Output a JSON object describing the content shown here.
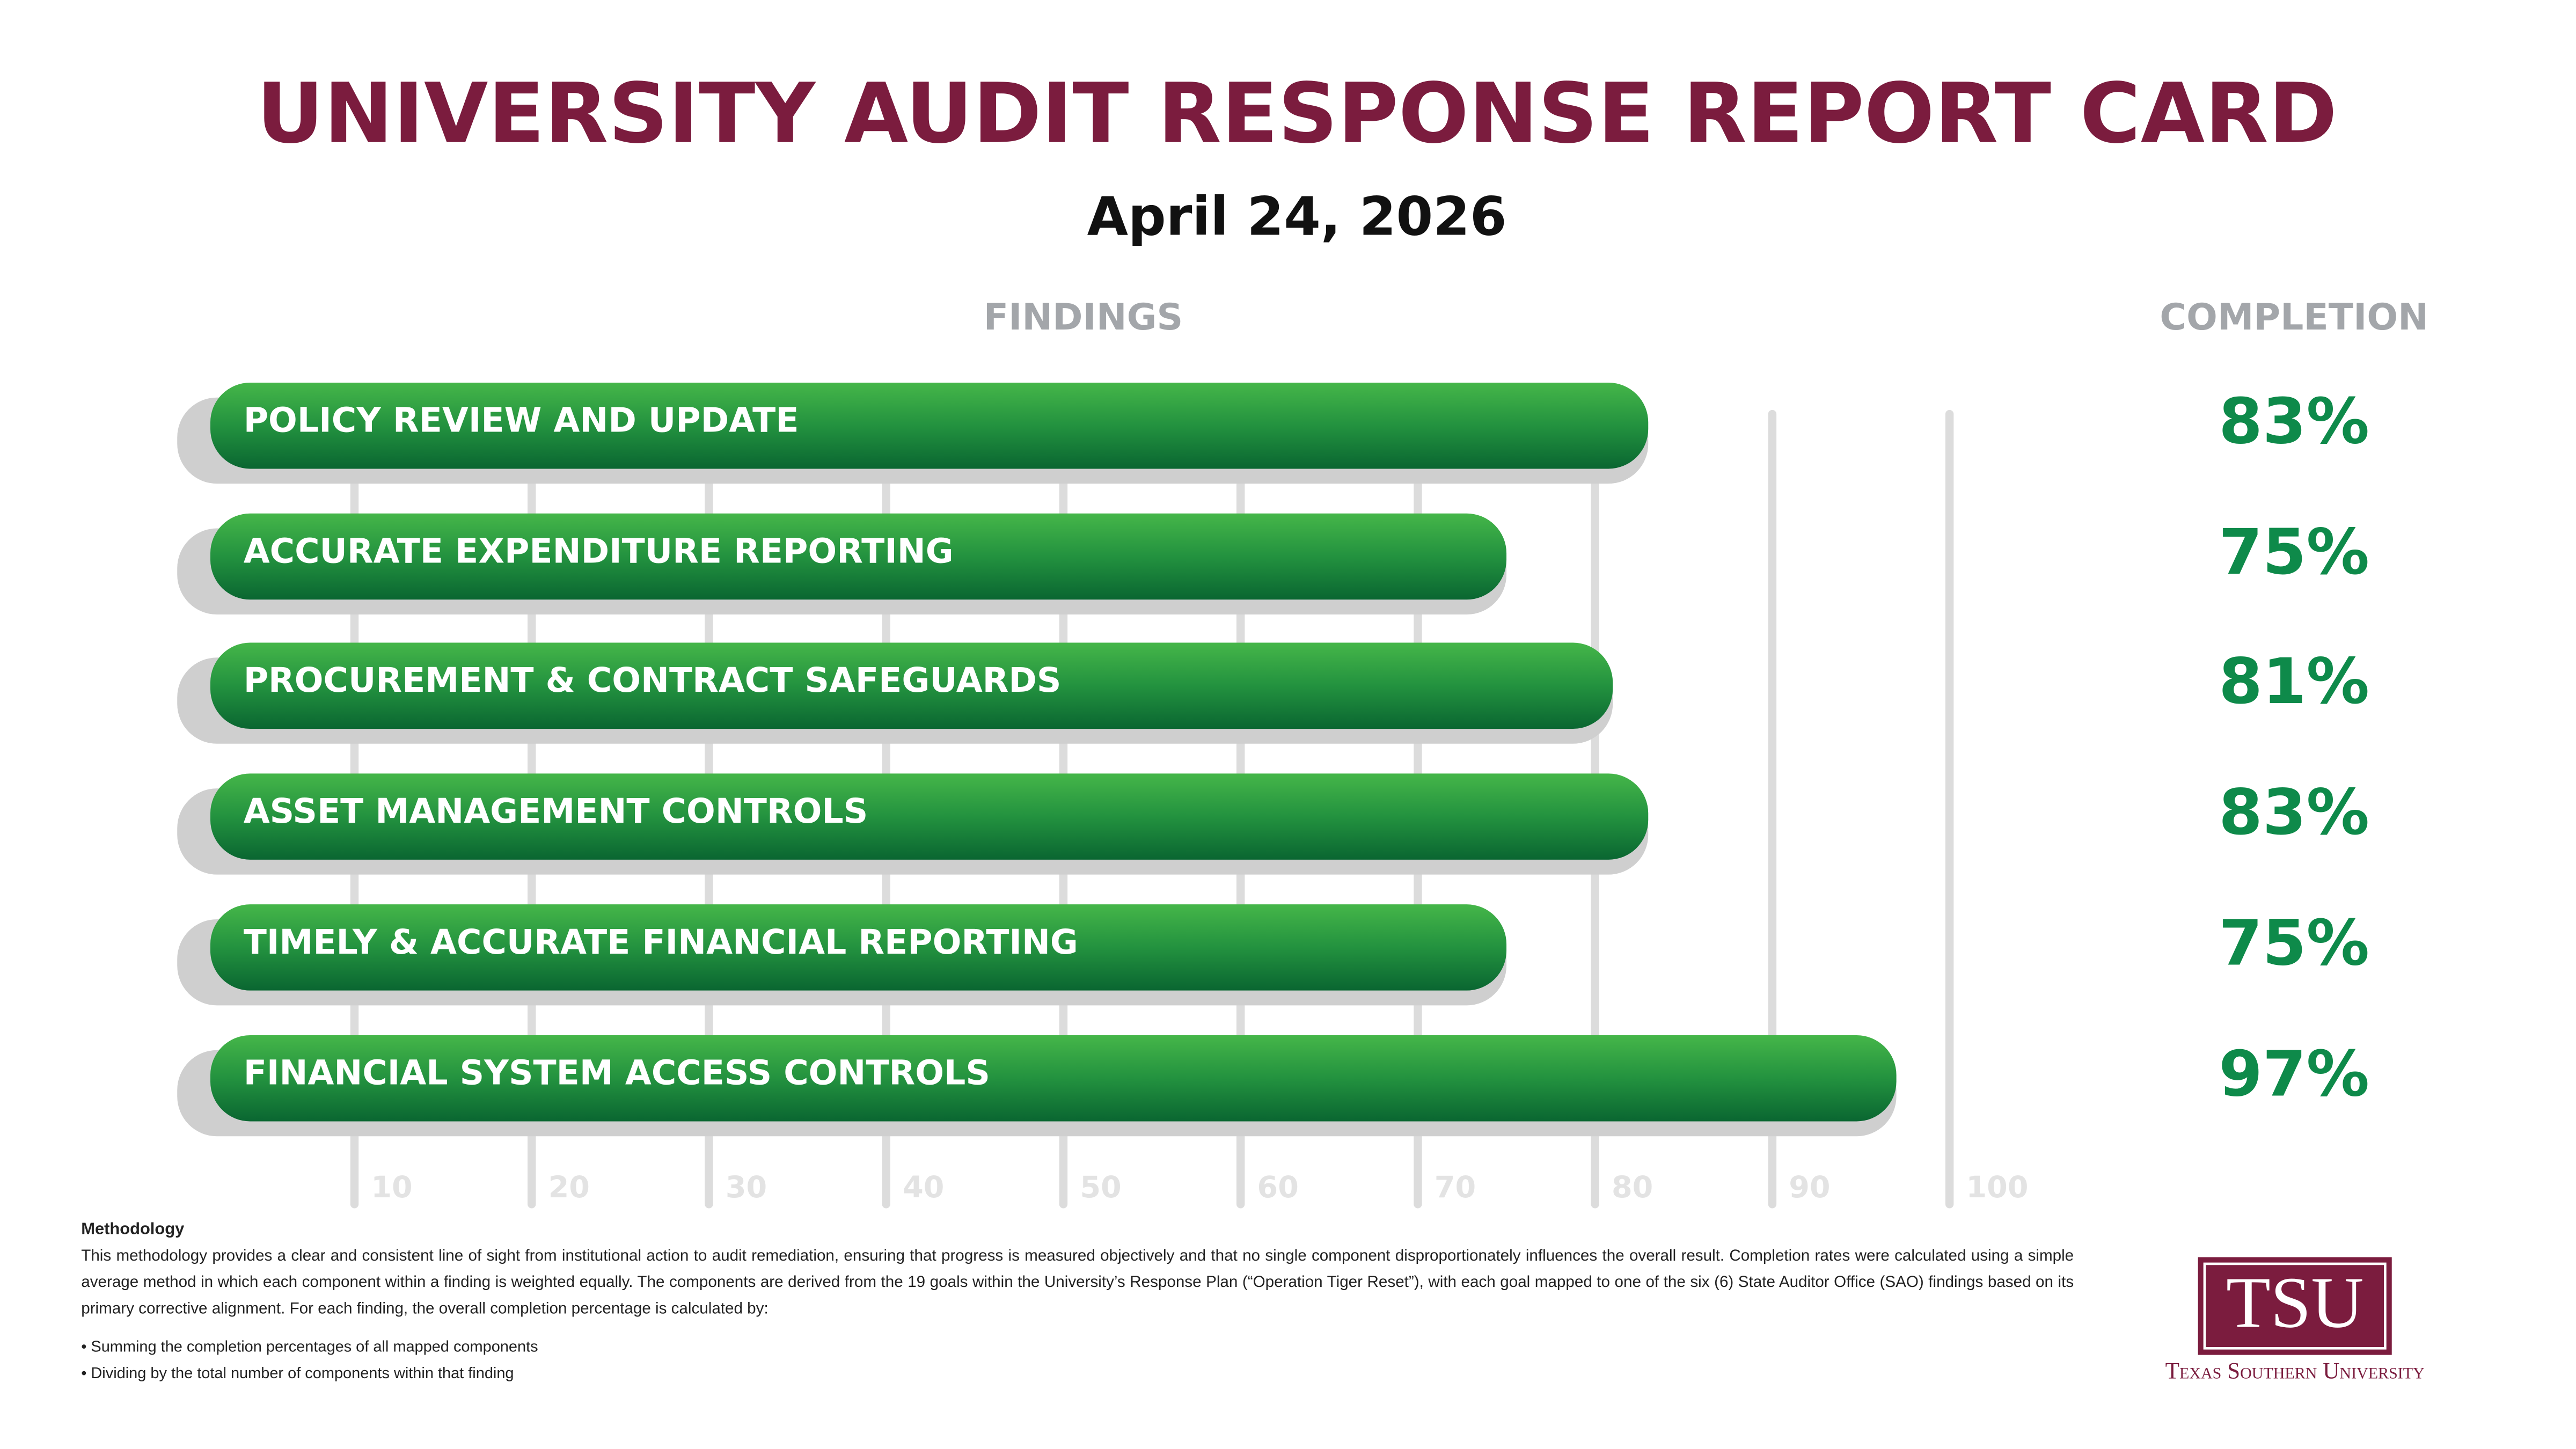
{
  "chart_data": {
    "type": "bar",
    "orientation": "horizontal",
    "title": "UNIVERSITY AUDIT RESPONSE REPORT CARD",
    "subtitle": "April 24, 2026",
    "category_header": "FINDINGS",
    "value_header": "COMPLETION",
    "categories": [
      "POLICY REVIEW AND UPDATE",
      "ACCURATE EXPENDITURE REPORTING",
      "PROCUREMENT & CONTRACT SAFEGUARDS",
      "ASSET MANAGEMENT CONTROLS",
      "TIMELY & ACCURATE FINANCIAL REPORTING",
      "FINANCIAL SYSTEM ACCESS CONTROLS"
    ],
    "values": [
      83,
      75,
      81,
      83,
      75,
      97
    ],
    "value_labels": [
      "83%",
      "75%",
      "81%",
      "83%",
      "75%",
      "97%"
    ],
    "color": "#23923f",
    "xlim": [
      0,
      100
    ],
    "xticks": [
      10,
      20,
      30,
      40,
      50,
      60,
      70,
      80,
      90,
      100
    ],
    "grid": true
  },
  "methodology": {
    "heading": "Methodology",
    "text": "This methodology provides a clear and consistent line of sight from institutional action to audit remediation, ensuring that progress is measured objectively and that no single component disproportionately influences the overall result. Completion rates were calculated using a simple average method in which each component within a finding is weighted equally. The components are derived from the 19 goals within the University’s Response Plan (“Operation Tiger Reset”), with each goal mapped to one of the six (6) State Auditor Office (SAO) findings based on its primary corrective alignment. For each finding, the overall completion percentage is calculated by:",
    "bullets": [
      "• Summing the completion percentages of all mapped components",
      "• Dividing by the total number of components within that finding"
    ]
  },
  "logo": {
    "abbr": "TSU",
    "name": "Texas Southern University"
  }
}
